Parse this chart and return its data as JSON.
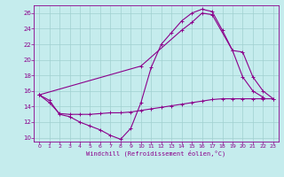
{
  "background_color": "#c5eced",
  "grid_color": "#a0d0d0",
  "line_color": "#8b008b",
  "xlim": [
    -0.5,
    23.5
  ],
  "ylim": [
    9.5,
    27
  ],
  "yticks": [
    10,
    12,
    14,
    16,
    18,
    20,
    22,
    24,
    26
  ],
  "xticks": [
    0,
    1,
    2,
    3,
    4,
    5,
    6,
    7,
    8,
    9,
    10,
    11,
    12,
    13,
    14,
    15,
    16,
    17,
    18,
    19,
    20,
    21,
    22,
    23
  ],
  "xlabel": "Windchill (Refroidissement éolien,°C)",
  "series": [
    {
      "x": [
        0,
        1,
        2,
        3,
        4,
        5,
        6,
        7,
        8,
        9,
        10,
        11,
        12,
        13,
        14,
        15,
        16,
        17,
        18,
        19,
        20,
        21,
        22
      ],
      "y": [
        15.5,
        14.8,
        13.0,
        12.7,
        12.0,
        11.5,
        11.0,
        10.3,
        9.8,
        11.2,
        14.5,
        19.0,
        22.0,
        23.5,
        25.0,
        26.0,
        26.5,
        26.2,
        23.8,
        21.2,
        17.8,
        16.0,
        15.2
      ]
    },
    {
      "x": [
        0,
        1,
        2,
        3,
        4,
        5,
        6,
        7,
        8,
        9,
        10,
        11,
        12,
        13,
        14,
        15,
        16,
        17,
        18,
        19,
        20,
        21,
        22,
        23
      ],
      "y": [
        15.5,
        14.5,
        13.1,
        13.0,
        13.0,
        13.0,
        13.1,
        13.2,
        13.2,
        13.3,
        13.5,
        13.7,
        13.9,
        14.1,
        14.3,
        14.5,
        14.7,
        14.9,
        15.0,
        15.0,
        15.0,
        15.0,
        15.0,
        15.0
      ]
    },
    {
      "x": [
        0,
        10,
        14,
        15,
        16,
        17,
        19,
        20,
        21,
        22,
        23
      ],
      "y": [
        15.5,
        19.2,
        23.8,
        24.8,
        26.0,
        25.8,
        21.2,
        21.0,
        17.8,
        16.0,
        15.0
      ]
    }
  ]
}
